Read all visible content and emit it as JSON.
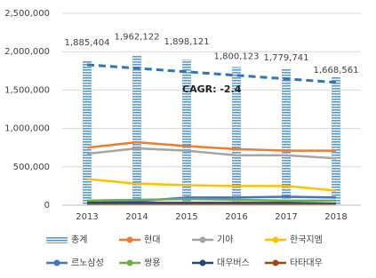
{
  "chart_data": {
    "type": "bar",
    "categories": [
      "2013",
      "2014",
      "2015",
      "2016",
      "2017",
      "2018"
    ],
    "ylim": [
      0,
      2500000
    ],
    "yticks": [
      {
        "value": 0,
        "label": "0"
      },
      {
        "value": 500000,
        "label": "500,000"
      },
      {
        "value": 1000000,
        "label": "1,000,000"
      },
      {
        "value": 1500000,
        "label": "1,500,000"
      },
      {
        "value": 2000000,
        "label": "2,000,000"
      },
      {
        "value": 2500000,
        "label": "2,500,000"
      }
    ],
    "series": [
      {
        "name": "총계",
        "type": "bar",
        "color": "#5b9bd5",
        "values": [
          1885404,
          1962122,
          1898121,
          1800123,
          1779741,
          1668561
        ],
        "value_labels": [
          "1,885,404",
          "1,962,122",
          "1,898,121",
          "1,800,123",
          "1,779,741",
          "1,668,561"
        ]
      },
      {
        "name": "현대",
        "type": "line",
        "color": "#ed7d31",
        "values": [
          750000,
          820000,
          770000,
          730000,
          710000,
          710000
        ]
      },
      {
        "name": "기아",
        "type": "line",
        "color": "#a5a5a5",
        "values": [
          670000,
          740000,
          710000,
          650000,
          650000,
          610000
        ]
      },
      {
        "name": "한국지엠",
        "type": "line",
        "color": "#ffc000",
        "values": [
          340000,
          280000,
          260000,
          250000,
          250000,
          190000
        ]
      },
      {
        "name": "르노삼성",
        "type": "line",
        "color": "#4472c4",
        "values": [
          30000,
          50000,
          100000,
          100000,
          110000,
          100000
        ]
      },
      {
        "name": "쌍용",
        "type": "line",
        "color": "#70ad47",
        "values": [
          60000,
          70000,
          80000,
          70000,
          60000,
          60000
        ]
      },
      {
        "name": "대우버스",
        "type": "line",
        "color": "#264478",
        "values": [
          30000,
          30000,
          30000,
          30000,
          30000,
          20000
        ]
      },
      {
        "name": "타타대우",
        "type": "line",
        "color": "#9e480e",
        "values": [
          10000,
          10000,
          10000,
          10000,
          10000,
          10000
        ]
      }
    ],
    "trendline": {
      "color": "#2e75b6",
      "values": [
        1830000,
        1784000,
        1738000,
        1692000,
        1646000,
        1600000
      ]
    },
    "annotation": "CAGR: -2.4"
  }
}
